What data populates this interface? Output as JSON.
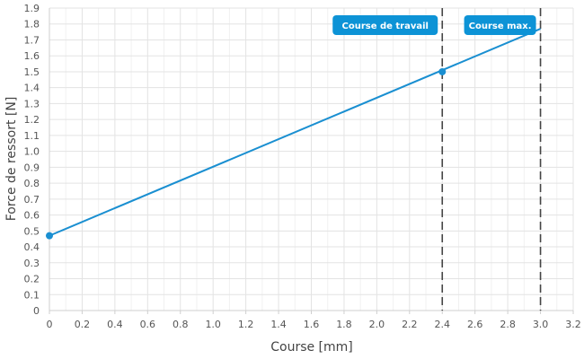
{
  "chart_data": {
    "type": "line",
    "title": "",
    "xlabel": "Course [mm]",
    "ylabel": "Force de ressort [N]",
    "xlim": [
      0,
      3.2
    ],
    "ylim": [
      0,
      1.9
    ],
    "x_ticks": [
      0,
      0.2,
      0.4,
      0.6,
      0.8,
      1.0,
      1.2,
      1.4,
      1.6,
      1.8,
      2.0,
      2.2,
      2.4,
      2.6,
      2.8,
      3.0,
      3.2
    ],
    "x_tick_labels": [
      "0",
      "0.2",
      "0.4",
      "0.6",
      "0.8",
      "1.0",
      "1.2",
      "1.4",
      "1.6",
      "1.8",
      "2.0",
      "2.2",
      "2.4",
      "2.6",
      "2.8",
      "3.0",
      "3.2"
    ],
    "y_ticks": [
      0,
      0.1,
      0.2,
      0.3,
      0.4,
      0.5,
      0.6,
      0.7,
      0.8,
      0.9,
      1.0,
      1.1,
      1.2,
      1.3,
      1.4,
      1.5,
      1.6,
      1.7,
      1.8,
      1.9
    ],
    "y_tick_labels": [
      "0",
      "0.1",
      "0.2",
      "0.3",
      "0.4",
      "0.5",
      "0.6",
      "0.7",
      "0.8",
      "0.9",
      "1.0",
      "1.1",
      "1.2",
      "1.3",
      "1.4",
      "1.5",
      "1.6",
      "1.7",
      "1.8",
      "1.9"
    ],
    "grid": true,
    "series": [
      {
        "color": "#1a8fd1",
        "x": [
          0,
          3.0
        ],
        "y": [
          0.47,
          1.77
        ],
        "points": [
          {
            "x": 0,
            "y": 0.47
          },
          {
            "x": 2.4,
            "y": 1.5
          }
        ]
      }
    ],
    "markers": [
      {
        "x": 2.4,
        "label": "Course de travail",
        "color": "#0d93d6"
      },
      {
        "x": 3.0,
        "label": "Course max.",
        "color": "#0d93d6"
      }
    ]
  }
}
